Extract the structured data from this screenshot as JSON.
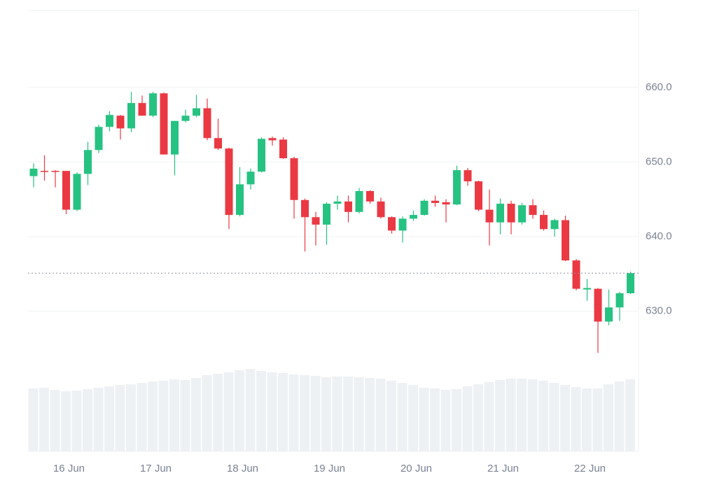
{
  "chart_data": {
    "type": "candlestick",
    "categories": [
      null,
      null,
      null,
      "16 Jun",
      null,
      null,
      null,
      null,
      null,
      null,
      null,
      "17 Jun",
      null,
      null,
      null,
      null,
      null,
      null,
      null,
      "18 Jun",
      null,
      null,
      null,
      null,
      null,
      null,
      null,
      "19 Jun",
      null,
      null,
      null,
      null,
      null,
      null,
      null,
      "20 Jun",
      null,
      null,
      null,
      null,
      null,
      null,
      null,
      "21 Jun",
      null,
      null,
      null,
      null,
      null,
      null,
      null,
      "22 Jun",
      null,
      null,
      null,
      null
    ],
    "open": [
      648.1,
      648.8,
      648.8,
      648.8,
      643.6,
      648.4,
      651.6,
      654.7,
      656.2,
      654.5,
      657.9,
      656.2,
      659.2,
      651.0,
      655.5,
      656.2,
      657.2,
      653.2,
      651.8,
      642.9,
      647.0,
      648.7,
      653.2,
      653.0,
      650.5,
      644.9,
      642.6,
      641.6,
      644.4,
      644.7,
      643.3,
      646.1,
      644.7,
      642.6,
      640.8,
      642.4,
      642.9,
      644.8,
      644.6,
      644.3,
      648.9,
      647.4,
      643.6,
      641.9,
      644.4,
      641.9,
      644.2,
      642.9,
      641.0,
      642.2,
      636.8,
      632.9,
      633.0,
      628.6,
      630.5,
      632.4
    ],
    "high": [
      649.8,
      650.9,
      648.9,
      648.8,
      648.6,
      652.7,
      655.0,
      656.8,
      656.3,
      659.4,
      658.9,
      659.4,
      659.3,
      655.5,
      657.0,
      659.0,
      658.5,
      655.8,
      651.9,
      649.3,
      649.1,
      653.3,
      653.4,
      653.3,
      650.7,
      645.1,
      643.3,
      644.6,
      645.5,
      645.5,
      646.5,
      646.2,
      645.2,
      642.7,
      642.7,
      643.5,
      645.0,
      645.5,
      645.0,
      649.5,
      649.2,
      647.5,
      646.3,
      645.1,
      644.8,
      644.5,
      645.0,
      643.5,
      642.4,
      642.8,
      637.0,
      634.3,
      633.1,
      632.9,
      632.6,
      635.3
    ],
    "low": [
      646.6,
      647.5,
      646.6,
      643.0,
      643.4,
      646.9,
      651.2,
      654.1,
      653.0,
      654.0,
      656.2,
      656.0,
      651.0,
      648.2,
      655.3,
      656.0,
      652.9,
      651.6,
      641.0,
      642.7,
      646.3,
      648.6,
      652.2,
      650.4,
      642.4,
      638.0,
      638.8,
      638.9,
      643.6,
      641.9,
      643.1,
      644.4,
      642.4,
      640.4,
      639.2,
      642.1,
      642.8,
      644.0,
      641.9,
      644.2,
      646.8,
      643.4,
      638.8,
      640.3,
      640.3,
      641.6,
      642.4,
      640.8,
      640.0,
      636.7,
      632.8,
      631.4,
      624.4,
      628.1,
      628.7,
      632.3
    ],
    "close": [
      649.1,
      648.7,
      648.7,
      643.6,
      648.4,
      651.6,
      654.7,
      656.3,
      654.5,
      657.9,
      656.2,
      659.2,
      651.0,
      655.5,
      656.2,
      657.2,
      653.2,
      651.8,
      642.9,
      647.0,
      648.7,
      653.1,
      652.9,
      650.5,
      644.9,
      642.6,
      641.6,
      644.4,
      644.7,
      643.3,
      646.1,
      644.7,
      642.6,
      640.8,
      642.4,
      642.9,
      644.8,
      644.5,
      644.3,
      648.9,
      647.4,
      643.6,
      641.9,
      644.4,
      641.9,
      644.2,
      642.9,
      641.0,
      642.2,
      636.8,
      633.0,
      633.1,
      628.6,
      630.5,
      632.4,
      635.1
    ],
    "volume": [
      90,
      91,
      88,
      86,
      87,
      89,
      91,
      93,
      95,
      96,
      98,
      100,
      101,
      103,
      102,
      105,
      109,
      111,
      113,
      116,
      118,
      115,
      113,
      112,
      110,
      109,
      108,
      106,
      107,
      107,
      106,
      105,
      104,
      101,
      98,
      95,
      91,
      90,
      88,
      89,
      93,
      96,
      99,
      102,
      104,
      104,
      103,
      101,
      98,
      95,
      92,
      90,
      90,
      96,
      100,
      103
    ],
    "up_color": "#26c281",
    "down_color": "#ea3943",
    "volume_color": "#eef1f4",
    "ylim": [
      611.2,
      670.3
    ],
    "yticks": [
      {
        "value": 630,
        "label": "630.0"
      },
      {
        "value": 640,
        "label": "640.0"
      },
      {
        "value": 650,
        "label": "650.0"
      },
      {
        "value": 660,
        "label": "660.0"
      }
    ],
    "grid": true,
    "last_price_line": true
  }
}
